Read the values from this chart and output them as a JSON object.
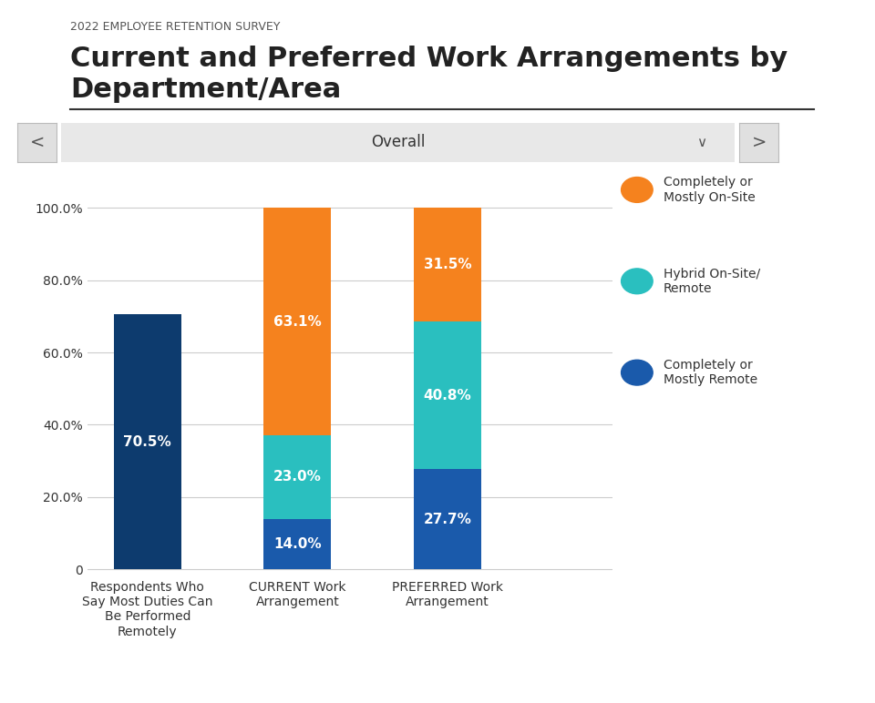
{
  "supertitle": "2022 EMPLOYEE RETENTION SURVEY",
  "title": "Current and Preferred Work Arrangements by\nDepartment/Area",
  "dropdown_label": "Overall",
  "categories": [
    "Respondents Who\nSay Most Duties Can\nBe Performed\nRemotely",
    "CURRENT Work\nArrangement",
    "PREFERRED Work\nArrangement"
  ],
  "bar1": {
    "segments": [
      {
        "value": 70.5,
        "color": "#0d3b6e",
        "label": "70.5%"
      }
    ]
  },
  "bar2": {
    "segments": [
      {
        "value": 14.0,
        "color": "#1a5aab",
        "label": "14.0%"
      },
      {
        "value": 23.0,
        "color": "#2abfbf",
        "label": "23.0%"
      },
      {
        "value": 63.1,
        "color": "#f5821e",
        "label": "63.1%"
      }
    ]
  },
  "bar3": {
    "segments": [
      {
        "value": 27.7,
        "color": "#1a5aab",
        "label": "27.7%"
      },
      {
        "value": 40.8,
        "color": "#2abfbf",
        "label": "40.8%"
      },
      {
        "value": 31.5,
        "color": "#f5821e",
        "label": "31.5%"
      }
    ]
  },
  "legend": [
    {
      "label": "Completely or\nMostly On-Site",
      "color": "#f5821e"
    },
    {
      "label": "Hybrid On-Site/\nRemote",
      "color": "#2abfbf"
    },
    {
      "label": "Completely or\nMostly Remote",
      "color": "#1a5aab"
    }
  ],
  "yticks": [
    0,
    20.0,
    40.0,
    60.0,
    80.0,
    100.0
  ],
  "ytick_labels": [
    "0",
    "20.0%",
    "40.0%",
    "60.0%",
    "80.0%",
    "100.0%"
  ],
  "background_color": "#ffffff",
  "grid_color": "#cccccc",
  "bar_width": 0.45,
  "value_fontsize": 11,
  "title_fontsize": 22,
  "supertitle_fontsize": 9,
  "value_color": "#ffffff"
}
